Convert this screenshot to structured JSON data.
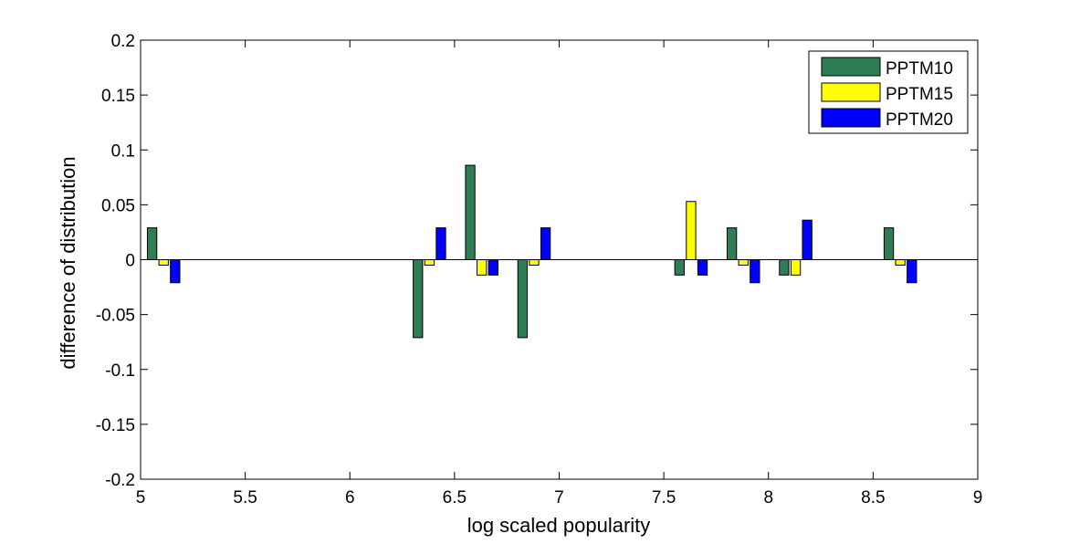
{
  "chart_data": {
    "type": "bar",
    "title": "",
    "xlabel": "log scaled popularity",
    "ylabel": "difference of distribution",
    "xlim": [
      5,
      9
    ],
    "ylim": [
      -0.2,
      0.2
    ],
    "xticks": [
      "5",
      "5.5",
      "6",
      "6.5",
      "7",
      "7.5",
      "8",
      "8.5",
      "9"
    ],
    "yticks": [
      "0.2",
      "0.15",
      "0.1",
      "0.05",
      "0",
      "-0.05",
      "-0.1",
      "-0.15",
      "-0.2"
    ],
    "grid": false,
    "legend_position": "top-right",
    "groups_x": [
      5.11,
      6.38,
      6.63,
      6.88,
      7.63,
      7.88,
      8.13,
      8.63
    ],
    "series": [
      {
        "name": "PPTM10",
        "color": "#2e7d55",
        "values": [
          0.029,
          -0.071,
          0.086,
          -0.071,
          -0.014,
          0.029,
          -0.014,
          0.029
        ]
      },
      {
        "name": "PPTM15",
        "color": "#ffff00",
        "values": [
          -0.005,
          -0.005,
          -0.014,
          -0.005,
          0.053,
          -0.005,
          -0.014,
          -0.005
        ]
      },
      {
        "name": "PPTM20",
        "color": "#0000ff",
        "values": [
          -0.021,
          0.029,
          -0.014,
          0.029,
          -0.014,
          -0.021,
          0.036,
          -0.021
        ]
      }
    ]
  }
}
